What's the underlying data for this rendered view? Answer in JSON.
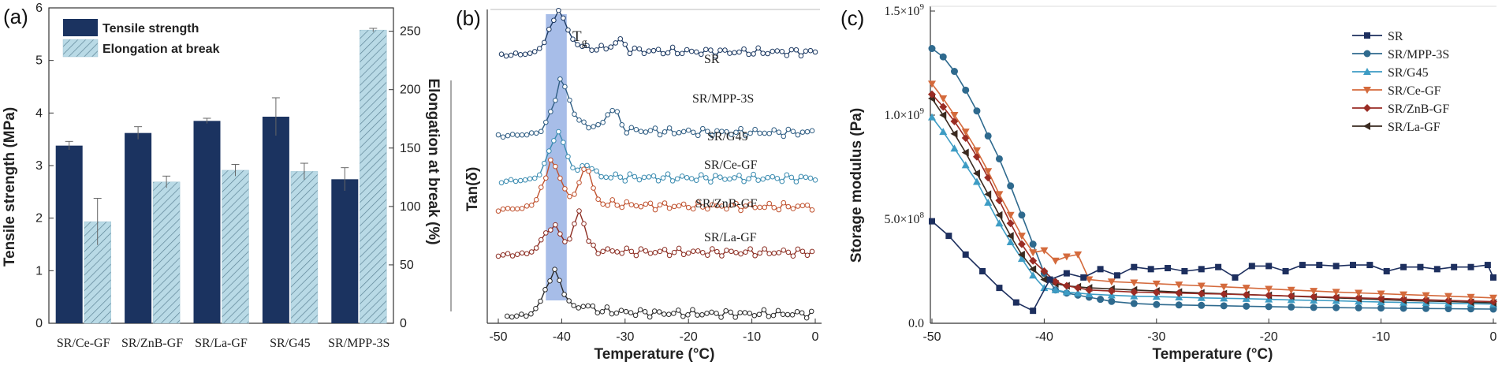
{
  "panels": [
    {
      "label": "(a)"
    },
    {
      "label": "(b)"
    },
    {
      "label": "(c)"
    }
  ],
  "colors": {
    "tensile": "#1b3360",
    "elongation": "#b9dae6",
    "tg_band": "#5f86d6"
  },
  "chart_data": [
    {
      "type": "bar",
      "categories": [
        "SR/Ce-GF",
        "SR/ZnB-GF",
        "SR/La-GF",
        "SR/G45",
        "SR/MPP-3S"
      ],
      "series": [
        {
          "name": "Tensile strength",
          "axis": "left",
          "values": [
            3.38,
            3.62,
            3.85,
            3.93,
            2.74
          ],
          "errors": [
            0.08,
            0.12,
            0.05,
            0.36,
            0.22
          ]
        },
        {
          "name": "Elongation at break",
          "axis": "right",
          "values": [
            87,
            121,
            131,
            130,
            251
          ],
          "errors": [
            20,
            5,
            5,
            7,
            1.5
          ]
        }
      ],
      "ylabel": "Tensile strength (MPa)",
      "ylabel_right": "Elongation at break (%)",
      "ylim": [
        0,
        6
      ],
      "ylim_right": [
        0,
        270
      ],
      "yticks": [
        "0",
        "1",
        "2",
        "3",
        "4",
        "5",
        "6"
      ],
      "yticks_right": [
        "0",
        "50",
        "100",
        "150",
        "200",
        "250"
      ],
      "legend": "top-left"
    },
    {
      "type": "line",
      "xlabel": "Temperature (°C)",
      "ylabel": "Tan(δ)",
      "xlim": [
        -50,
        0
      ],
      "xticks": [
        "-50",
        "-40",
        "-30",
        "-20",
        "-10",
        "0"
      ],
      "annotation": "T",
      "annotation_sub": "g",
      "tg_band": [
        -42.5,
        -39.2
      ],
      "series": [
        {
          "name": "SR",
          "color": "#1d3a63",
          "peak_x": -40.8,
          "peak_h": 42,
          "offset": 66,
          "tail": 14,
          "second_x": -31,
          "second_h": 12,
          "start": -49.5
        },
        {
          "name": "SR/MPP-3S",
          "color": "#2f5d83",
          "peak_x": -40.3,
          "peak_h": 48,
          "offset": 168,
          "tail": 20,
          "second_x": -32,
          "second_h": 26,
          "start": -50
        },
        {
          "name": "SR/G45",
          "color": "#3a8bb0",
          "peak_x": -40.8,
          "peak_h": 52,
          "offset": 226,
          "tail": 8,
          "second_x": -36,
          "second_h": 14,
          "start": -49.5
        },
        {
          "name": "SR/Ce-GF",
          "color": "#c0522f",
          "peak_x": -41.8,
          "peak_h": 42,
          "offset": 262,
          "tail": 18,
          "second_x": -36.2,
          "second_h": 44,
          "start": -50
        },
        {
          "name": "SR/ZnB-GF",
          "color": "#8c2d22",
          "peak_x": -41.7,
          "peak_h": 30,
          "offset": 320,
          "tail": 8,
          "second_x": -37.2,
          "second_h": 48,
          "start": -50
        },
        {
          "name": "SR/La-GF",
          "color": "#2a2a2a",
          "peak_x": -41.5,
          "peak_h": 44,
          "offset": 398,
          "tail": 14,
          "second_x": -36,
          "second_h": 4,
          "start": -48.6
        }
      ]
    },
    {
      "type": "line",
      "xlabel": "Temperature (°C)",
      "ylabel": "Storage modulus (Pa)",
      "xlim": [
        -50,
        0
      ],
      "ylim": [
        0,
        1500000000.0
      ],
      "xticks": [
        "-50",
        "-40",
        "-30",
        "-20",
        "-10",
        "0"
      ],
      "yticks": [
        {
          "base": "0.0",
          "exp": ""
        },
        {
          "base": "5.0×10",
          "exp": "8"
        },
        {
          "base": "1.0×10",
          "exp": "9"
        },
        {
          "base": "1.5×10",
          "exp": "9"
        }
      ],
      "legend": "top-right",
      "series": [
        {
          "name": "SR",
          "color": "#1d2f5e",
          "marker": "square",
          "x": [
            -50,
            -48.5,
            -47,
            -45.5,
            -44,
            -42.5,
            -41,
            -39.5,
            -38,
            -36.5,
            -35,
            -33.5,
            -32,
            -30.5,
            -29,
            -27.5,
            -26,
            -24.5,
            -23,
            -21.5,
            -20,
            -18.5,
            -17,
            -15.5,
            -14,
            -12.5,
            -11,
            -9.5,
            -8,
            -6.5,
            -5,
            -3.5,
            -2,
            -0.5,
            0
          ],
          "y": [
            490000000.0,
            420000000.0,
            330000000.0,
            250000000.0,
            170000000.0,
            100000000.0,
            60000000.0,
            210000000.0,
            240000000.0,
            220000000.0,
            260000000.0,
            230000000.0,
            270000000.0,
            260000000.0,
            265000000.0,
            250000000.0,
            260000000.0,
            270000000.0,
            220000000.0,
            275000000.0,
            275000000.0,
            250000000.0,
            280000000.0,
            280000000.0,
            275000000.0,
            280000000.0,
            280000000.0,
            250000000.0,
            270000000.0,
            270000000.0,
            260000000.0,
            270000000.0,
            270000000.0,
            280000000.0,
            220000000.0
          ]
        },
        {
          "name": "SR/MPP-3S",
          "color": "#2f6a8e",
          "marker": "circle",
          "x": [
            -50,
            -49,
            -48,
            -47,
            -46,
            -45,
            -44,
            -43,
            -42,
            -41,
            -40,
            -39,
            -38,
            -37,
            -36,
            -35,
            -34,
            -32,
            -30,
            -28,
            -26,
            -24,
            -22,
            -20,
            -18,
            -16,
            -14,
            -12,
            -10,
            -8,
            -6,
            -4,
            -2,
            0
          ],
          "y": [
            1320000000.0,
            1280000000.0,
            1210000000.0,
            1120000000.0,
            1020000000.0,
            900000000.0,
            790000000.0,
            660000000.0,
            520000000.0,
            380000000.0,
            240000000.0,
            160000000.0,
            145000000.0,
            135000000.0,
            125000000.0,
            115000000.0,
            105000000.0,
            95000000.0,
            90000000.0,
            88000000.0,
            86000000.0,
            84000000.0,
            82000000.0,
            80000000.0,
            78000000.0,
            76000000.0,
            75000000.0,
            74000000.0,
            73000000.0,
            72000000.0,
            71000000.0,
            70000000.0,
            69000000.0,
            68000000.0
          ]
        },
        {
          "name": "SR/G45",
          "color": "#3d9cc4",
          "marker": "triangle-up",
          "x": [
            -50,
            -49,
            -48,
            -47,
            -46,
            -45,
            -44,
            -43,
            -42,
            -41,
            -40,
            -39,
            -38,
            -37,
            -36,
            -34,
            -32,
            -30,
            -28,
            -26,
            -24,
            -22,
            -20,
            -18,
            -16,
            -14,
            -12,
            -10,
            -8,
            -6,
            -4,
            -2,
            0
          ],
          "y": [
            990000000.0,
            920000000.0,
            840000000.0,
            760000000.0,
            680000000.0,
            580000000.0,
            480000000.0,
            390000000.0,
            310000000.0,
            230000000.0,
            170000000.0,
            160000000.0,
            150000000.0,
            145000000.0,
            140000000.0,
            135000000.0,
            130000000.0,
            128000000.0,
            125000000.0,
            122000000.0,
            120000000.0,
            118000000.0,
            115000000.0,
            112000000.0,
            110000000.0,
            108000000.0,
            105000000.0,
            102000000.0,
            100000000.0,
            98000000.0,
            96000000.0,
            94000000.0,
            92000000.0
          ]
        },
        {
          "name": "SR/Ce-GF",
          "color": "#d46a3c",
          "marker": "triangle-down",
          "x": [
            -50,
            -49,
            -48,
            -47,
            -46,
            -45,
            -44,
            -43,
            -42,
            -41,
            -40,
            -39,
            -38,
            -37,
            -36,
            -34,
            -32,
            -30,
            -28,
            -26,
            -24,
            -22,
            -20,
            -18,
            -16,
            -14,
            -12,
            -10,
            -8,
            -6,
            -4,
            -2,
            0
          ],
          "y": [
            1150000000.0,
            1080000000.0,
            1000000000.0,
            920000000.0,
            830000000.0,
            730000000.0,
            620000000.0,
            520000000.0,
            420000000.0,
            340000000.0,
            350000000.0,
            300000000.0,
            320000000.0,
            330000000.0,
            210000000.0,
            200000000.0,
            195000000.0,
            190000000.0,
            185000000.0,
            180000000.0,
            175000000.0,
            170000000.0,
            165000000.0,
            160000000.0,
            155000000.0,
            150000000.0,
            146000000.0,
            142000000.0,
            138000000.0,
            134000000.0,
            130000000.0,
            126000000.0,
            122000000.0
          ]
        },
        {
          "name": "SR/ZnB-GF",
          "color": "#9a2c24",
          "marker": "diamond",
          "x": [
            -50,
            -49,
            -48,
            -47,
            -46,
            -45,
            -44,
            -43,
            -42,
            -41,
            -40,
            -39,
            -38,
            -37,
            -36,
            -34,
            -32,
            -30,
            -28,
            -26,
            -24,
            -22,
            -20,
            -18,
            -16,
            -14,
            -12,
            -10,
            -8,
            -6,
            -4,
            -2,
            0
          ],
          "y": [
            1100000000.0,
            1040000000.0,
            970000000.0,
            890000000.0,
            800000000.0,
            700000000.0,
            590000000.0,
            480000000.0,
            380000000.0,
            300000000.0,
            250000000.0,
            200000000.0,
            180000000.0,
            170000000.0,
            160000000.0,
            155000000.0,
            150000000.0,
            148000000.0,
            145000000.0,
            142000000.0,
            140000000.0,
            137000000.0,
            134000000.0,
            131000000.0,
            128000000.0,
            125000000.0,
            122000000.0,
            119000000.0,
            116000000.0,
            113000000.0,
            110000000.0,
            107000000.0,
            104000000.0
          ]
        },
        {
          "name": "SR/La-GF",
          "color": "#3a2a20",
          "marker": "triangle-left",
          "x": [
            -50,
            -49,
            -48,
            -47,
            -46,
            -45,
            -44,
            -43,
            -42,
            -41,
            -40,
            -39,
            -38,
            -37,
            -36,
            -34,
            -32,
            -30,
            -28,
            -26,
            -24,
            -22,
            -20,
            -18,
            -16,
            -14,
            -12,
            -10,
            -8,
            -6,
            -4,
            -2,
            0
          ],
          "y": [
            1080000000.0,
            1000000000.0,
            910000000.0,
            820000000.0,
            720000000.0,
            620000000.0,
            520000000.0,
            420000000.0,
            330000000.0,
            260000000.0,
            210000000.0,
            190000000.0,
            180000000.0,
            175000000.0,
            170000000.0,
            165000000.0,
            160000000.0,
            155000000.0,
            150000000.0,
            146000000.0,
            142000000.0,
            138000000.0,
            134000000.0,
            130000000.0,
            126000000.0,
            122000000.0,
            118000000.0,
            114000000.0,
            110000000.0,
            107000000.0,
            104000000.0,
            101000000.0,
            98000000.0
          ]
        }
      ]
    }
  ]
}
